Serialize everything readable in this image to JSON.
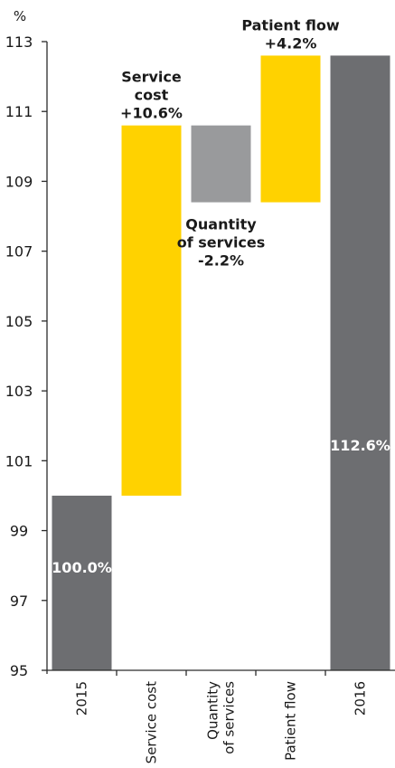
{
  "chart_data": {
    "type": "bar",
    "subtype": "waterfall",
    "unit_label": "%",
    "ylim": [
      95,
      113
    ],
    "yticks": [
      95,
      97,
      99,
      101,
      103,
      105,
      107,
      109,
      111,
      113
    ],
    "grid": false,
    "bars": [
      {
        "category": "2015",
        "kind": "total",
        "base": 95,
        "top": 100.0,
        "color": "#6d6e71",
        "inner_label": "100.0%"
      },
      {
        "category": "Service cost",
        "kind": "change",
        "base": 100.0,
        "top": 110.6,
        "color": "#ffd200",
        "annotation": [
          "Service",
          "cost",
          "+10.6%"
        ]
      },
      {
        "category": "Quantity\nof services",
        "kind": "change",
        "base": 108.4,
        "top": 110.6,
        "color": "#999a9c",
        "annotation": [
          "Quantity",
          "of services",
          "-2.2%"
        ]
      },
      {
        "category": "Patient flow",
        "kind": "change",
        "base": 108.4,
        "top": 112.6,
        "color": "#ffd200",
        "annotation": [
          "Patient flow",
          "+4.2%"
        ]
      },
      {
        "category": "2016",
        "kind": "total",
        "base": 95,
        "top": 112.6,
        "color": "#6d6e71",
        "inner_label": "112.6%"
      }
    ]
  }
}
